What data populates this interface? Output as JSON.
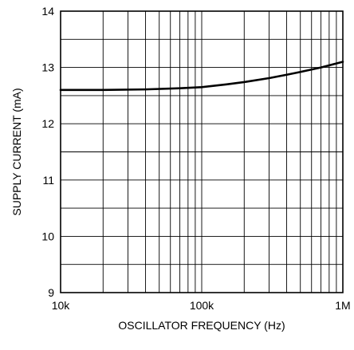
{
  "chart_data": {
    "type": "line",
    "xlabel": "OSCILLATOR FREQUENCY (Hz)",
    "ylabel": "SUPPLY CURRENT (mA)",
    "x_scale": "log",
    "xlim": [
      10000,
      1000000
    ],
    "ylim": [
      9,
      14
    ],
    "grid": true,
    "x_ticks": [
      {
        "value": 10000,
        "label": "10k"
      },
      {
        "value": 100000,
        "label": "100k"
      },
      {
        "value": 1000000,
        "label": "1M"
      }
    ],
    "y_ticks": [
      {
        "value": 9,
        "label": "9"
      },
      {
        "value": 10,
        "label": "10"
      },
      {
        "value": 11,
        "label": "11"
      },
      {
        "value": 12,
        "label": "12"
      },
      {
        "value": 13,
        "label": "13"
      },
      {
        "value": 14,
        "label": "14"
      }
    ],
    "series": [
      {
        "x": [
          10000,
          20000,
          40000,
          70000,
          100000,
          150000,
          200000,
          300000,
          400000,
          500000,
          700000,
          1000000
        ],
        "y": [
          12.6,
          12.6,
          12.61,
          12.63,
          12.65,
          12.7,
          12.74,
          12.81,
          12.87,
          12.92,
          13.0,
          13.1
        ]
      }
    ],
    "colors": {
      "line": "#000000",
      "grid": "#000000",
      "background": "#ffffff"
    }
  }
}
